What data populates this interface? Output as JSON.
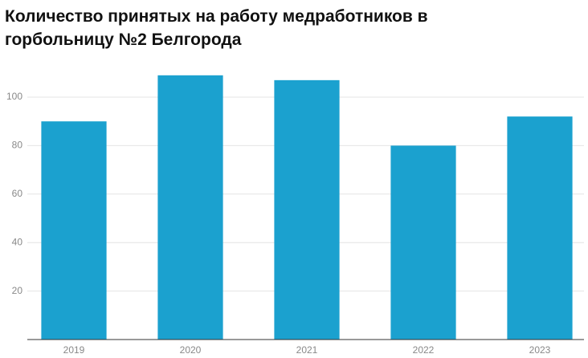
{
  "chart_data": {
    "type": "bar",
    "title": "Количество принятых на работу медработников в горбольницу №2 Белгорода",
    "categories": [
      "2019",
      "2020",
      "2021",
      "2022",
      "2023"
    ],
    "values": [
      90,
      109,
      107,
      80,
      92
    ],
    "color": "#1ba1cf",
    "ylim": [
      0,
      110
    ],
    "yticks": [
      20,
      40,
      60,
      80,
      100
    ],
    "grid": true
  }
}
